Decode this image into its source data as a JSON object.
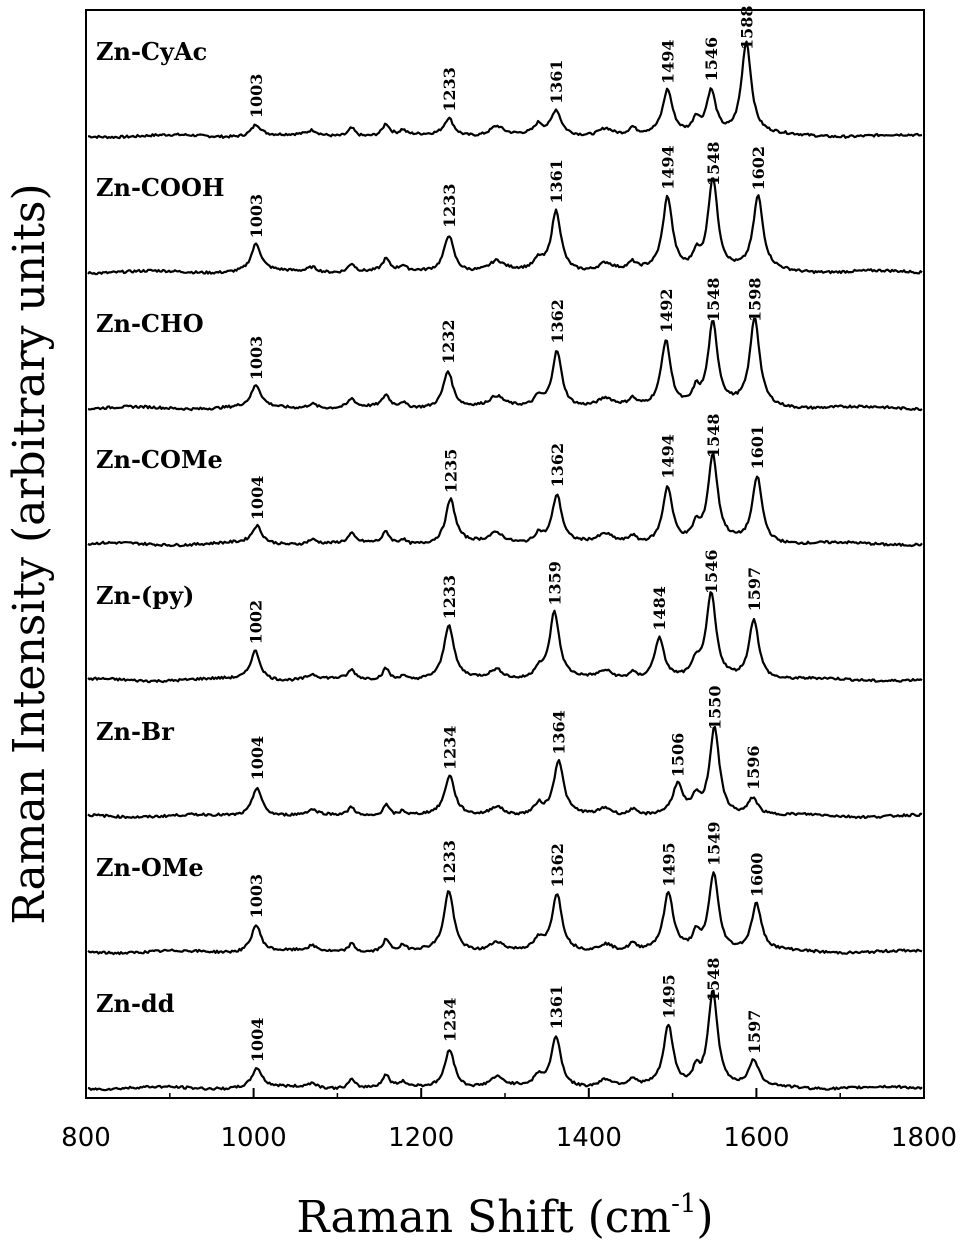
{
  "chart_data": {
    "type": "line",
    "title": "",
    "xlabel_main": "Raman Shift (cm",
    "xlabel_sup": "-1",
    "xlabel_close": ")",
    "ylabel": "Raman Intensity (arbitrary units)",
    "xlim": [
      800,
      1800
    ],
    "x_ticks": [
      "800",
      "1000",
      "1200",
      "1400",
      "1600",
      "1800"
    ],
    "grid": false,
    "series": [
      {
        "name": "Zn-CyAc",
        "peaks": [
          {
            "x": 1003,
            "label": "1003",
            "h": 0.12
          },
          {
            "x": 1233,
            "label": "1233",
            "h": 0.18
          },
          {
            "x": 1361,
            "label": "1361",
            "h": 0.25
          },
          {
            "x": 1494,
            "label": "1494",
            "h": 0.45
          },
          {
            "x": 1546,
            "label": "1546",
            "h": 0.45
          },
          {
            "x": 1588,
            "label": "1588",
            "h": 0.95
          }
        ]
      },
      {
        "name": "Zn-COOH",
        "peaks": [
          {
            "x": 1003,
            "label": "1003",
            "h": 0.28
          },
          {
            "x": 1233,
            "label": "1233",
            "h": 0.38
          },
          {
            "x": 1361,
            "label": "1361",
            "h": 0.62
          },
          {
            "x": 1494,
            "label": "1494",
            "h": 0.75
          },
          {
            "x": 1548,
            "label": "1548",
            "h": 0.95
          },
          {
            "x": 1602,
            "label": "1602",
            "h": 0.75
          }
        ]
      },
      {
        "name": "Zn-CHO",
        "peaks": [
          {
            "x": 1003,
            "label": "1003",
            "h": 0.22
          },
          {
            "x": 1232,
            "label": "1232",
            "h": 0.38
          },
          {
            "x": 1362,
            "label": "1362",
            "h": 0.58
          },
          {
            "x": 1492,
            "label": "1492",
            "h": 0.68
          },
          {
            "x": 1548,
            "label": "1548",
            "h": 0.85
          },
          {
            "x": 1598,
            "label": "1598",
            "h": 0.9
          }
        ]
      },
      {
        "name": "Zn-COMe",
        "peaks": [
          {
            "x": 1004,
            "label": "1004",
            "h": 0.18
          },
          {
            "x": 1235,
            "label": "1235",
            "h": 0.45
          },
          {
            "x": 1362,
            "label": "1362",
            "h": 0.5
          },
          {
            "x": 1494,
            "label": "1494",
            "h": 0.58
          },
          {
            "x": 1548,
            "label": "1548",
            "h": 0.88
          },
          {
            "x": 1601,
            "label": "1601",
            "h": 0.68
          }
        ]
      },
      {
        "name": "Zn-(py)",
        "peaks": [
          {
            "x": 1002,
            "label": "1002",
            "h": 0.3
          },
          {
            "x": 1233,
            "label": "1233",
            "h": 0.55
          },
          {
            "x": 1359,
            "label": "1359",
            "h": 0.68
          },
          {
            "x": 1484,
            "label": "1484",
            "h": 0.42
          },
          {
            "x": 1546,
            "label": "1546",
            "h": 0.86
          },
          {
            "x": 1597,
            "label": "1597",
            "h": 0.62
          }
        ]
      },
      {
        "name": "Zn-Br",
        "peaks": [
          {
            "x": 1004,
            "label": "1004",
            "h": 0.3
          },
          {
            "x": 1234,
            "label": "1234",
            "h": 0.4
          },
          {
            "x": 1364,
            "label": "1364",
            "h": 0.55
          },
          {
            "x": 1506,
            "label": "1506",
            "h": 0.3
          },
          {
            "x": 1550,
            "label": "1550",
            "h": 0.9
          },
          {
            "x": 1596,
            "label": "1596",
            "h": 0.18
          }
        ]
      },
      {
        "name": "Zn-OMe",
        "peaks": [
          {
            "x": 1003,
            "label": "1003",
            "h": 0.28
          },
          {
            "x": 1233,
            "label": "1233",
            "h": 0.62
          },
          {
            "x": 1362,
            "label": "1362",
            "h": 0.58
          },
          {
            "x": 1495,
            "label": "1495",
            "h": 0.58
          },
          {
            "x": 1549,
            "label": "1549",
            "h": 0.8
          },
          {
            "x": 1600,
            "label": "1600",
            "h": 0.48
          }
        ]
      },
      {
        "name": "Zn-dd",
        "peaks": [
          {
            "x": 1004,
            "label": "1004",
            "h": 0.2
          },
          {
            "x": 1234,
            "label": "1234",
            "h": 0.4
          },
          {
            "x": 1361,
            "label": "1361",
            "h": 0.52
          },
          {
            "x": 1495,
            "label": "1495",
            "h": 0.62
          },
          {
            "x": 1548,
            "label": "1548",
            "h": 0.98
          },
          {
            "x": 1597,
            "label": "1597",
            "h": 0.26
          }
        ]
      }
    ]
  }
}
